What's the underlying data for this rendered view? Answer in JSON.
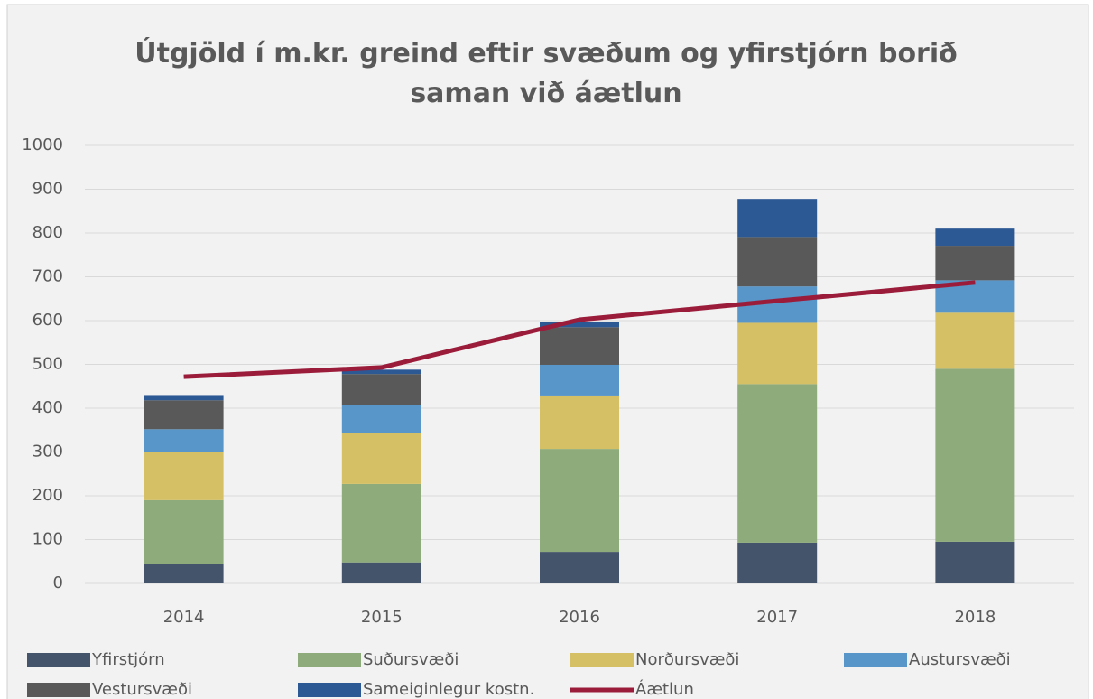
{
  "chart_data": {
    "type": "bar",
    "stacked": true,
    "title": "Útgjöld í m.kr. greind eftir svæðum og yfirstjórn borið saman við áætlun",
    "categories": [
      "2014",
      "2015",
      "2016",
      "2017",
      "2018"
    ],
    "series": [
      {
        "name": "Yfirstjórn",
        "color": "#44546a",
        "values": [
          45,
          48,
          72,
          93,
          95
        ]
      },
      {
        "name": "Suðursvæði",
        "color": "#8dab7b",
        "values": [
          145,
          179,
          235,
          362,
          395
        ]
      },
      {
        "name": "Norðursvæði",
        "color": "#d5c065",
        "values": [
          110,
          117,
          122,
          140,
          128
        ]
      },
      {
        "name": "Austursvæði",
        "color": "#5895c9",
        "values": [
          52,
          64,
          70,
          83,
          74
        ]
      },
      {
        "name": "Vestursvæði",
        "color": "#595959",
        "values": [
          66,
          70,
          86,
          113,
          79
        ]
      },
      {
        "name": "Sameiginlegur kostn.",
        "color": "#2c5893",
        "values": [
          12,
          10,
          12,
          87,
          39
        ]
      },
      {
        "name": "Áætlun",
        "color": "#9b1c3a",
        "type": "line",
        "values": [
          472,
          493,
          602,
          645,
          687
        ]
      }
    ],
    "ylim": [
      0,
      1000
    ],
    "yticks": [
      0,
      100,
      200,
      300,
      400,
      500,
      600,
      700,
      800,
      900,
      1000
    ],
    "grid": true
  }
}
